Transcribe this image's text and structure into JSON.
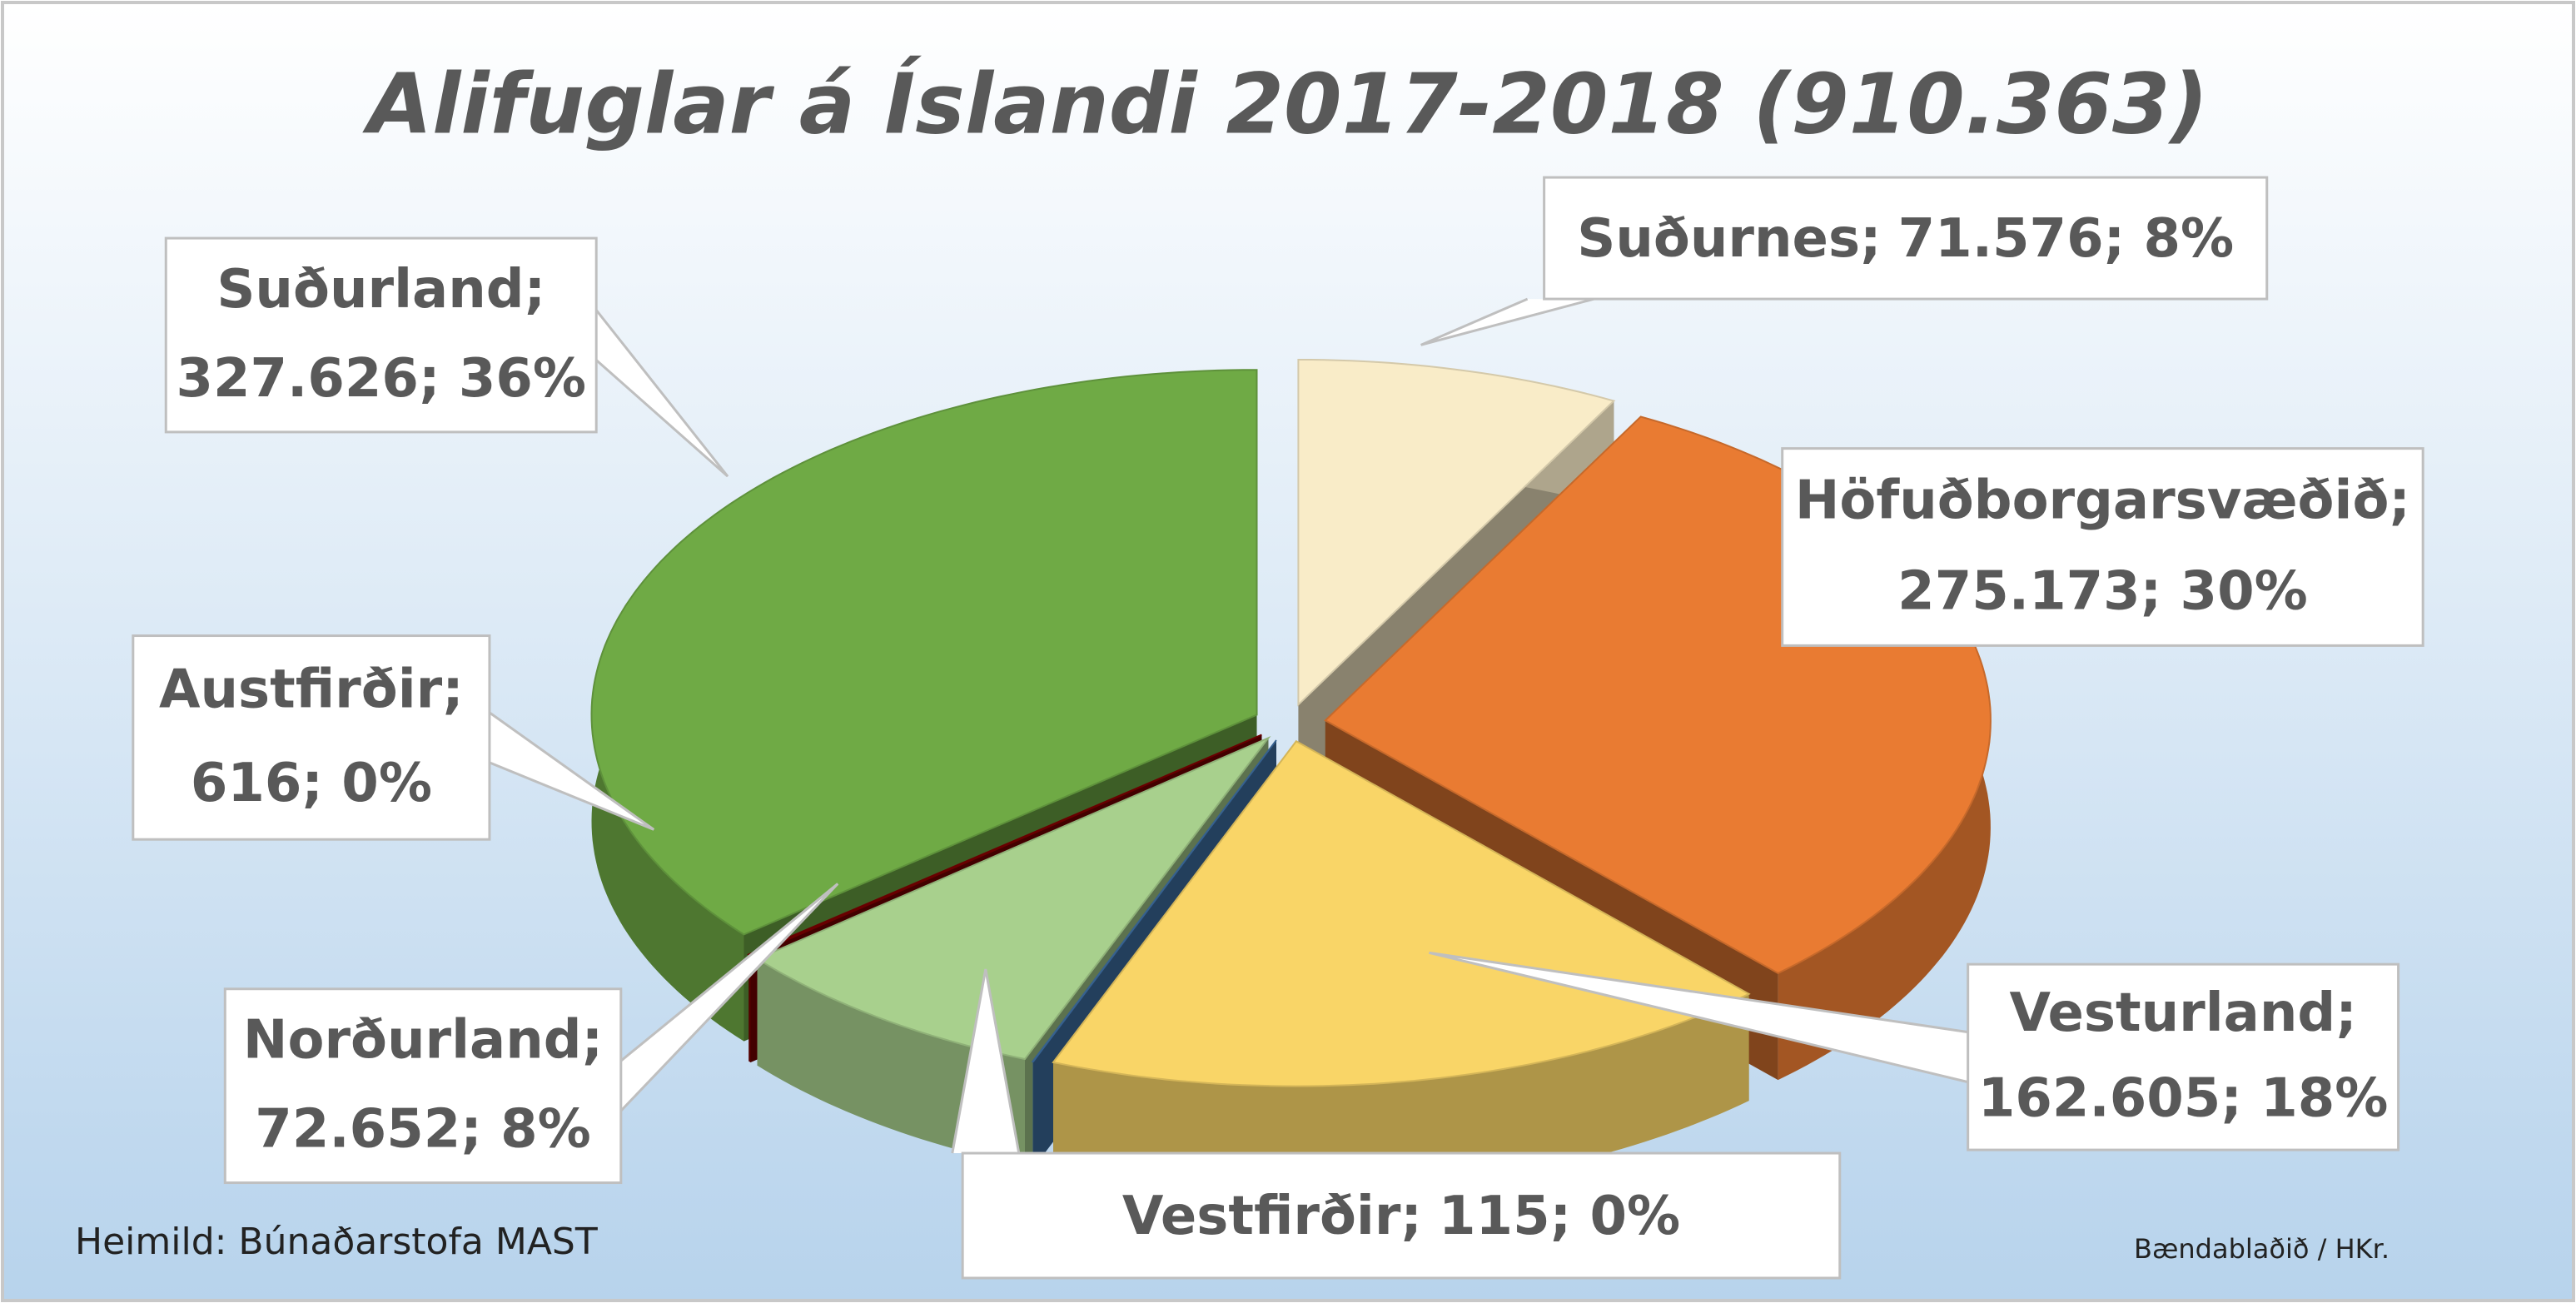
{
  "chart_data": {
    "type": "pie",
    "title": "Alifuglar á Íslandi 2017-2018 (910.363)",
    "categories": [
      "Suðurnes;",
      "Höfuðborgarsvæðið;",
      "Vesturland;",
      "Vestfirðir;",
      "Norðurland;",
      "Austfirðir;",
      "Suðurland;"
    ],
    "values": [
      71576,
      275173,
      162605,
      115,
      72652,
      616,
      327626
    ],
    "value_labels": [
      "71.576; 8%",
      "275.173; 30%",
      "162.605; 18%",
      "115; 0%",
      "72.652; 8%",
      "616; 0%",
      "327.626; 36%"
    ],
    "colors": [
      "#f9ecc8",
      "#e97b32",
      "#f9d567",
      "#3f72a8",
      "#a8d08d",
      "#7a0000",
      "#6faa45"
    ],
    "source": "Heimild: Búnaðarstofa MAST",
    "credit": "Bændablaðið / HKr."
  }
}
